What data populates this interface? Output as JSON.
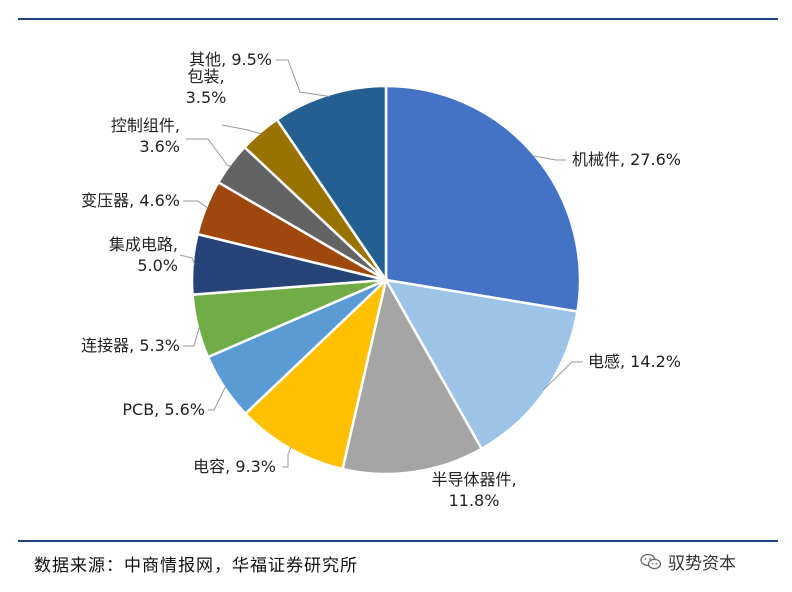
{
  "chart_data": {
    "type": "pie",
    "title": "",
    "slices": [
      {
        "label": "机械件",
        "value": 27.6,
        "text": "机械件, 27.6%",
        "color": "#4472c4"
      },
      {
        "label": "电感",
        "value": 14.2,
        "text": "电感, 14.2%",
        "color": "#9dc3e6"
      },
      {
        "label": "半导体器件",
        "value": 11.8,
        "text": "半导体器件,|11.8%",
        "color": "#a5a5a5"
      },
      {
        "label": "电容",
        "value": 9.3,
        "text": "电容, 9.3%",
        "color": "#ffc000"
      },
      {
        "label": "PCB",
        "value": 5.6,
        "text": "PCB, 5.6%",
        "color": "#5b9bd5"
      },
      {
        "label": "连接器",
        "value": 5.3,
        "text": "连接器, 5.3%",
        "color": "#70ad47"
      },
      {
        "label": "集成电路",
        "value": 5.0,
        "text": "集成电路,|5.0%",
        "color": "#264478"
      },
      {
        "label": "变压器",
        "value": 4.6,
        "text": "变压器, 4.6%",
        "color": "#9e480e"
      },
      {
        "label": "控制组件",
        "value": 3.6,
        "text": "控制组件,|3.6%",
        "color": "#636363"
      },
      {
        "label": "包装",
        "value": 3.5,
        "text": "包装,|3.5%",
        "color": "#997300"
      },
      {
        "label": "其他",
        "value": 9.5,
        "text": "其他, 9.5%",
        "color": "#255e91"
      }
    ]
  },
  "footer": {
    "source": "数据来源：中商情报网，华福证券研究所",
    "watermark": "驭势资本",
    "watermark_icon": "wechat-icon"
  }
}
